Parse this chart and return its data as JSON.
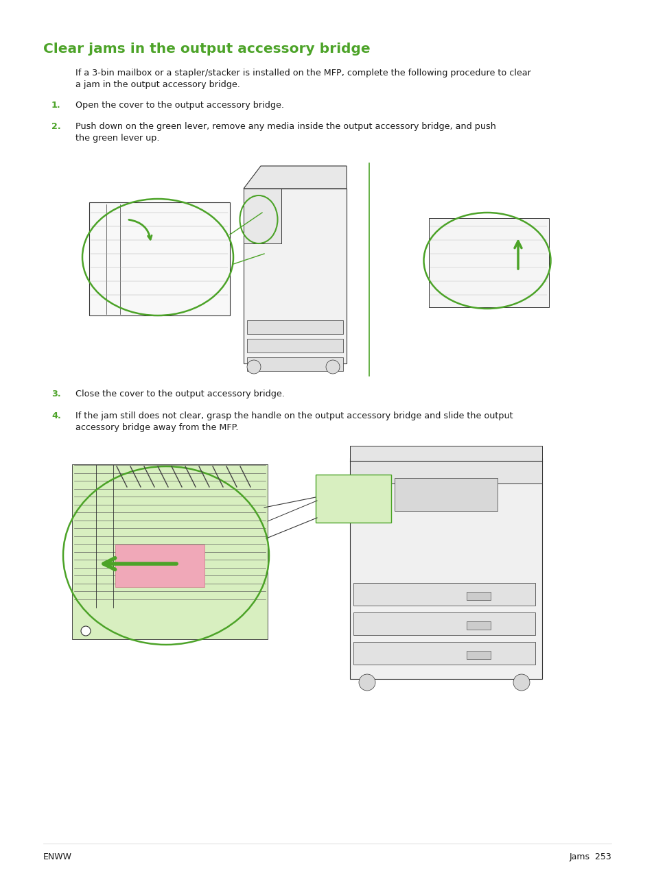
{
  "title": "Clear jams in the output accessory bridge",
  "title_color": "#4CA328",
  "title_fontsize": 14.5,
  "body_fontsize": 9.2,
  "small_fontsize": 8.5,
  "number_color": "#4CA328",
  "text_color": "#1a1a1a",
  "background_color": "#ffffff",
  "intro_text": "If a 3-bin mailbox or a stapler/stacker is installed on the MFP, complete the following procedure to clear\na jam in the output accessory bridge.",
  "step1_text": "Open the cover to the output accessory bridge.",
  "step2_text": "Push down on the green lever, remove any media inside the output accessory bridge, and push\nthe green lever up.",
  "step3_text": "Close the cover to the output accessory bridge.",
  "step4_text": "If the jam still does not clear, grasp the handle on the output accessory bridge and slide the output\naccessory bridge away from the MFP.",
  "footer_left": "ENWW",
  "footer_right": "Jams  253",
  "footer_fontsize": 9,
  "green_line_color": "#4CA328",
  "drawing_color": "#333333",
  "light_green": "#d8efc0",
  "pink_color": "#f0a8b8",
  "page_width": 9.54,
  "page_height": 12.7
}
